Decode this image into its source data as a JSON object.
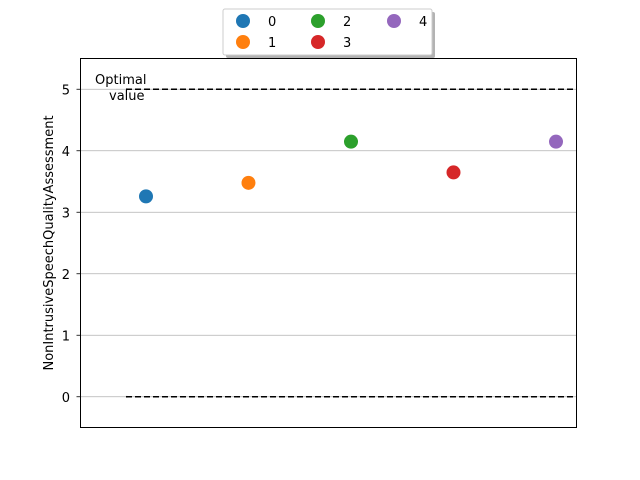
{
  "chart_data": {
    "type": "scatter",
    "title": "",
    "xlabel": "",
    "ylabel": "NonIntrusiveSpeechQualityAssessment",
    "ylim": [
      -0.5,
      5.5
    ],
    "yticks": [
      "0",
      "1",
      "2",
      "3",
      "4",
      "5"
    ],
    "grid": "y-axis",
    "legend_placement": "top-center",
    "series": [
      {
        "name": "0",
        "x": 0,
        "y": 3.25,
        "color": "#1f77b4"
      },
      {
        "name": "1",
        "x": 1,
        "y": 3.47,
        "color": "#ff7f0e"
      },
      {
        "name": "2",
        "x": 2,
        "y": 4.14,
        "color": "#2ca02c"
      },
      {
        "name": "3",
        "x": 3,
        "y": 3.64,
        "color": "#d62728"
      },
      {
        "name": "4",
        "x": 4,
        "y": 4.14,
        "color": "#9467bd"
      }
    ],
    "reference_lines": [
      {
        "y": 5,
        "style": "dashed",
        "color": "#000000"
      },
      {
        "y": 0,
        "style": "dashed",
        "color": "#000000"
      }
    ],
    "annotation": {
      "line1": "Optimal",
      "line2": "value"
    }
  }
}
